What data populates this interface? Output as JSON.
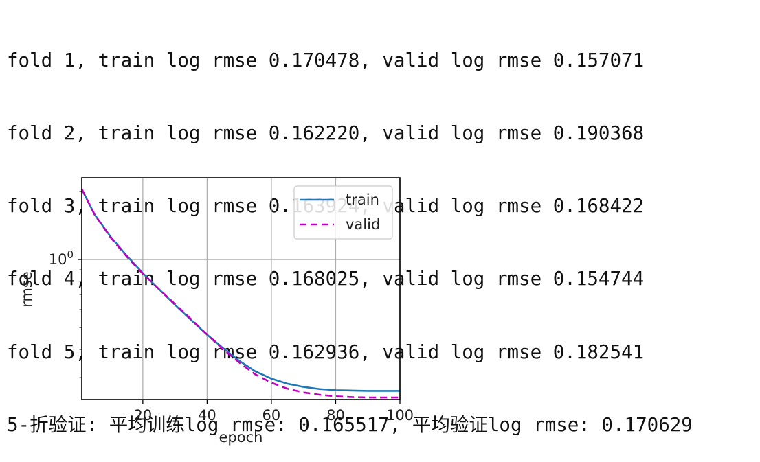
{
  "console_lines": [
    "fold 1, train log rmse 0.170478, valid log rmse 0.157071",
    "fold 2, train log rmse 0.162220, valid log rmse 0.190368",
    "fold 3, train log rmse 0.163924, valid log rmse 0.168422",
    "fold 4, train log rmse 0.168025, valid log rmse 0.154744",
    "fold 5, train log rmse 0.162936, valid log rmse 0.182541",
    "5-折验证: 平均训练log rmse: 0.165517, 平均验证log rmse: 0.170629"
  ],
  "chart_data": {
    "type": "line",
    "xlabel": "epoch",
    "ylabel": "rmse",
    "xlim": [
      1,
      100
    ],
    "ylim": [
      0.24,
      2.3
    ],
    "yscale": "log",
    "grid": true,
    "legend_position": "top-right",
    "x_ticks": [
      20,
      40,
      60,
      80,
      100
    ],
    "x_tick_labels": [
      "20",
      "40",
      "60",
      "80",
      "100"
    ],
    "y_ticks": [
      1.0
    ],
    "y_tick_base": "10",
    "y_tick_exponent": "0",
    "x": [
      1,
      5,
      10,
      15,
      20,
      25,
      30,
      35,
      40,
      45,
      50,
      55,
      60,
      65,
      70,
      75,
      80,
      85,
      90,
      95,
      100
    ],
    "series": [
      {
        "name": "train",
        "color": "#1f77b4",
        "style": "solid",
        "values": [
          2.05,
          1.58,
          1.26,
          1.04,
          0.87,
          0.74,
          0.63,
          0.54,
          0.465,
          0.405,
          0.356,
          0.32,
          0.297,
          0.282,
          0.273,
          0.267,
          0.264,
          0.263,
          0.262,
          0.262,
          0.262
        ]
      },
      {
        "name": "valid",
        "color": "#bf00bf",
        "style": "dashed",
        "values": [
          2.05,
          1.58,
          1.25,
          1.03,
          0.865,
          0.74,
          0.635,
          0.545,
          0.465,
          0.4,
          0.35,
          0.31,
          0.285,
          0.268,
          0.258,
          0.252,
          0.248,
          0.246,
          0.245,
          0.245,
          0.245
        ]
      }
    ]
  }
}
